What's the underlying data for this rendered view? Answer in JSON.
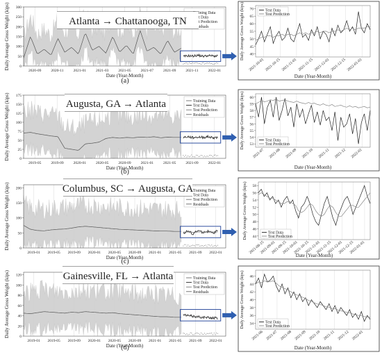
{
  "chart_data": [
    {
      "id": "a",
      "type": "line",
      "caption": "(a)",
      "route_title": "Atlanta → Chattanooga, TN",
      "main": {
        "xlabel": "Date (Year-Month)",
        "ylabel": "Daily Average Gross Weight (kips)",
        "xticks": [
          "2020-09",
          "2020-11",
          "2021-01",
          "2021-03",
          "2021-05",
          "2021-07",
          "2021-09",
          "2021-11",
          "2022-01"
        ],
        "yticks": [
          "0",
          "50",
          "100",
          "150",
          "200",
          "250",
          "300"
        ],
        "ylim": [
          0,
          300
        ],
        "legend": [
          "Training Data",
          "Test Data",
          "Test Prediction",
          "Residuals"
        ],
        "series": [
          {
            "name": "Training Data",
            "values": [
              40,
              150,
              60,
              85,
              55,
              140,
              70,
              95,
              60,
              170,
              80,
              100,
              65,
              150,
              70,
              105,
              60,
              180,
              75,
              95,
              60,
              130,
              70,
              90
            ]
          },
          {
            "name": "Test Data",
            "values": [
              48,
              52,
              50,
              55,
              49,
              53,
              51,
              50
            ]
          },
          {
            "name": "Test Prediction",
            "values": [
              50,
              50,
              51,
              51,
              51,
              52,
              52,
              52
            ]
          }
        ]
      },
      "zoom": {
        "xlabel": "Date (Year-Month)",
        "ylabel": "Daily Average Gross Weight (kips)",
        "xticks": [
          "2021-10-01",
          "2021-10-15",
          "2021-11-01",
          "2021-11-15",
          "2021-12-01",
          "2021-12-15",
          "2022-01-01"
        ],
        "yticks": [
          "40",
          "45",
          "50",
          "55",
          "60",
          "65",
          "70"
        ],
        "ylim": [
          38,
          72
        ],
        "legend": [
          "Test Data",
          "Test Prediction"
        ],
        "series": [
          {
            "name": "Test Data",
            "values": [
              46,
              50,
              55,
              48,
              53,
              58,
              47,
              52,
              55,
              49,
              51,
              57,
              50,
              48,
              54,
              60,
              51,
              53,
              49,
              56,
              52,
              58,
              50,
              55,
              53,
              48,
              57,
              52,
              59,
              54,
              56,
              62,
              55,
              58,
              53,
              68,
              57,
              54,
              60,
              56
            ]
          },
          {
            "name": "Test Prediction",
            "values": [
              49,
              50,
              51,
              51,
              52,
              52,
              51,
              52,
              52,
              53,
              52,
              53,
              53,
              52,
              53,
              54,
              53,
              54,
              53,
              54,
              54,
              55,
              54,
              55,
              55,
              54,
              55,
              55,
              56,
              55,
              56,
              57,
              56,
              57,
              56,
              57,
              57,
              57,
              58,
              58
            ]
          }
        ]
      }
    },
    {
      "id": "b",
      "type": "line",
      "caption": "(b)",
      "route_title": "Augusta, GA → Atlanta",
      "main": {
        "xlabel": "Date (Year-Month)",
        "ylabel": "Daily Average Gross Weight (kips)",
        "xticks": [
          "2019-05",
          "2019-09",
          "2020-01",
          "2020-05",
          "2020-09",
          "2021-01",
          "2021-05",
          "2021-09",
          "2022-01"
        ],
        "yticks": [
          "0",
          "25",
          "50",
          "75",
          "100",
          "125",
          "150",
          "175"
        ],
        "ylim": [
          0,
          175
        ],
        "legend": [
          "Training Data",
          "Test Data",
          "Test Prediction",
          "Residuals"
        ],
        "series": [
          {
            "name": "Training Data",
            "values": [
              70,
              72,
              68,
              65,
              62,
              60,
              28,
              25,
              22,
              40,
              42,
              45,
              55,
              58,
              56,
              58,
              57,
              59,
              58,
              60,
              57,
              59,
              58,
              58
            ]
          },
          {
            "name": "Test Data",
            "values": [
              58,
              60,
              57,
              59,
              58,
              60,
              57,
              58
            ]
          },
          {
            "name": "Test Prediction",
            "values": [
              58,
              58,
              58,
              58,
              58,
              58,
              58,
              58
            ]
          }
        ]
      },
      "zoom": {
        "xlabel": "Date (Year-Month)",
        "ylabel": "Daily Average Gross Weight (kips)",
        "xticks": [
          "2021-07",
          "2021-08",
          "2021-09",
          "2021-10",
          "2021-11",
          "2021-12",
          "2022-01"
        ],
        "yticks": [
          "53",
          "54",
          "55",
          "56",
          "57",
          "58",
          "59",
          "60"
        ],
        "ylim": [
          52.5,
          60.5
        ],
        "legend": [
          "Test Data",
          "Test Prediction"
        ],
        "series": [
          {
            "name": "Test Data",
            "values": [
              59,
              57,
              60,
              56,
              58.5,
              59.5,
              57,
              60,
              56.5,
              58,
              59.8,
              57.2,
              58.5,
              55.5,
              59,
              57,
              58.2,
              56,
              57.5,
              58.8,
              56.2,
              57.8,
              55.8,
              58,
              56.5,
              57,
              55,
              57.8,
              53.5,
              57,
              55.5,
              56,
              57.5,
              54.5,
              56.8,
              53,
              56.2,
              57.5,
              55,
              58
            ]
          },
          {
            "name": "Test Prediction",
            "values": [
              59,
              59.2,
              59.5,
              59.3,
              59.4,
              59.6,
              59.5,
              59.7,
              59.4,
              59.5,
              59.6,
              59.4,
              59.3,
              59.2,
              59.4,
              59.2,
              59.1,
              59,
              59.2,
              59,
              59.1,
              58.9,
              58.8,
              59,
              58.8,
              58.7,
              58.9,
              58.6,
              58.7,
              58.8,
              58.6,
              58.5,
              58.7,
              58.5,
              58.6,
              58.4,
              58.5,
              58.6,
              58.4,
              58.5
            ]
          }
        ]
      }
    },
    {
      "id": "c",
      "type": "line",
      "caption": "(c)",
      "route_title": "Columbus, SC → Augusta, GA",
      "main": {
        "xlabel": "Date (Year-Month)",
        "ylabel": "Daily Average Gross Weight (kips)",
        "xticks": [
          "2019-01",
          "2019-05",
          "2019-09",
          "2020-01",
          "2020-05",
          "2020-09",
          "2021-01",
          "2021-05",
          "2021-09",
          "2022-01"
        ],
        "yticks": [
          "0",
          "50",
          "100",
          "150",
          "200"
        ],
        "ylim": [
          0,
          210
        ],
        "legend": [
          "Training Data",
          "Test Data",
          "Test Prediction",
          "Residuals"
        ],
        "series": [
          {
            "name": "Training Data",
            "values": [
              75,
              62,
              58,
              57,
              60,
              62,
              63,
              66,
              70,
              72,
              70,
              68,
              66,
              64,
              62,
              61,
              60,
              59,
              58,
              57,
              56,
              56,
              55,
              55
            ]
          },
          {
            "name": "Test Data",
            "values": [
              50,
              56,
              47,
              58,
              52,
              55,
              49,
              57
            ]
          },
          {
            "name": "Test Prediction",
            "values": [
              53,
              53,
              52,
              53,
              53,
              54,
              53,
              53
            ]
          }
        ]
      },
      "zoom": {
        "xlabel": "Date (Year-Month)",
        "ylabel": "Daily Average Gross Weight (kips)",
        "xticks": [
          "2021-08-15",
          "2021-09-01",
          "2021-09-15",
          "2021-10-01",
          "2021-10-15",
          "2021-11-01",
          "2021-11-15",
          "2021-12-01",
          "2021-12-15",
          "2022-01-01"
        ],
        "yticks": [
          "44",
          "46",
          "48",
          "50",
          "52",
          "54",
          "56",
          "58"
        ],
        "ylim": [
          43,
          59
        ],
        "legend": [
          "Test Data",
          "Test Prediction"
        ],
        "series": [
          {
            "name": "Test Data",
            "values": [
              56,
              57,
              55,
              56,
              54,
              55,
              53,
              54,
              52,
              54,
              55,
              53,
              54,
              51,
              49,
              52,
              53,
              55,
              53,
              50,
              48,
              47,
              50,
              53,
              55,
              52,
              49,
              47,
              50,
              52,
              54,
              55,
              53,
              50,
              52,
              54,
              56,
              58,
              55,
              53
            ]
          },
          {
            "name": "Test Prediction",
            "values": [
              55.5,
              56,
              55.5,
              55,
              54.5,
              54.5,
              54,
              53.5,
              53,
              53,
              53.5,
              53.5,
              53,
              52.5,
              51,
              50.5,
              51,
              52,
              53,
              52.5,
              51,
              50,
              49.5,
              50,
              51.5,
              52.5,
              52,
              50.5,
              49.5,
              49.5,
              50.5,
              51.5,
              52.5,
              52.5,
              52,
              52,
              53,
              54,
              55,
              56
            ]
          }
        ]
      }
    },
    {
      "id": "d",
      "type": "line",
      "caption": "(d)",
      "route_title": "Gainesville, FL → Atlanta",
      "main": {
        "xlabel": "Date (Year-Month)",
        "ylabel": "Daily Average Gross Weight (kips)",
        "xticks": [
          "2019-01",
          "2019-05",
          "2019-09",
          "2020-01",
          "2020-05",
          "2020-09",
          "2021-01",
          "2021-05",
          "2021-09",
          "2022-01"
        ],
        "yticks": [
          "0",
          "20",
          "40",
          "60",
          "80",
          "100",
          "120"
        ],
        "ylim": [
          0,
          125
        ],
        "legend": [
          "Training Data",
          "Test Data",
          "Test Prediction",
          "Residuals"
        ],
        "series": [
          {
            "name": "Training Data",
            "values": [
              45,
              44,
              46,
              48,
              47,
              46,
              45,
              47,
              46,
              48,
              47,
              46,
              45,
              46,
              44,
              43,
              42,
              41,
              40,
              39,
              38,
              38,
              37,
              37
            ]
          },
          {
            "name": "Test Data",
            "values": [
              42,
              40,
              39,
              38,
              37,
              36,
              36,
              35
            ]
          },
          {
            "name": "Test Prediction",
            "values": [
              41,
              40,
              39,
              38,
              37,
              37,
              36,
              36
            ]
          }
        ]
      },
      "zoom": {
        "xlabel": "Date (Year-Month)",
        "ylabel": "Daily Average Gross Weight (kips)",
        "xticks": [
          "2021-06",
          "2021-07",
          "2021-08",
          "2021-09",
          "2021-10",
          "2021-11",
          "2021-12",
          "2022-01"
        ],
        "yticks": [
          "34",
          "36",
          "38",
          "40",
          "42",
          "44",
          "46"
        ],
        "ylim": [
          32.5,
          47.5
        ],
        "legend": [
          "Test Data",
          "Test Prediction"
        ],
        "series": [
          {
            "name": "Test Data",
            "values": [
              44,
              45.5,
              43,
              46.5,
              44.5,
              45,
              46,
              43.5,
              42,
              44,
              41.5,
              43,
              40.5,
              42,
              40,
              41.5,
              39.5,
              40.5,
              38.5,
              40,
              39,
              38,
              39.5,
              38.5,
              37.5,
              39,
              37,
              38.5,
              36.5,
              38,
              37,
              36,
              37.5,
              35.5,
              36.5,
              35,
              37,
              34.5,
              36,
              35
            ]
          },
          {
            "name": "Test Prediction",
            "values": [
              44,
              44.5,
              44.3,
              44.8,
              44.5,
              44.6,
              44.8,
              44.2,
              43.5,
              43.2,
              42.8,
              42.5,
              42,
              41.6,
              41.2,
              41,
              40.6,
              40.3,
              39.8,
              39.6,
              39.2,
              38.9,
              38.8,
              38.5,
              38.2,
              38.1,
              37.8,
              37.7,
              37.4,
              37.2,
              37,
              36.8,
              36.7,
              36.4,
              36.2,
              36,
              35.9,
              35.7,
              35.6,
              35.5
            ]
          }
        ]
      }
    }
  ]
}
